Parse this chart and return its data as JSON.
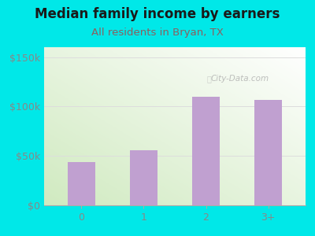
{
  "title": "Median family income by earners",
  "subtitle": "All residents in Bryan, TX",
  "categories": [
    "0",
    "1",
    "2",
    "3+"
  ],
  "values": [
    44000,
    56000,
    110000,
    107000
  ],
  "bar_color": "#c0a0d0",
  "background_color": "#00e8e8",
  "plot_bg_topleft": "#e8f5e0",
  "plot_bg_topright": "#ffffff",
  "plot_bg_bottomleft": "#d0eac0",
  "plot_bg_bottomright": "#f0f8f0",
  "yticks": [
    0,
    50000,
    100000,
    150000
  ],
  "ytick_labels": [
    "$0",
    "$50k",
    "$100k",
    "$150k"
  ],
  "ylim": [
    0,
    160000
  ],
  "title_fontsize": 12,
  "subtitle_fontsize": 9.5,
  "title_color": "#1a1a1a",
  "subtitle_color": "#8b6060",
  "watermark": "City-Data.com",
  "grid_color": "#dddddd",
  "tick_color": "#888888"
}
